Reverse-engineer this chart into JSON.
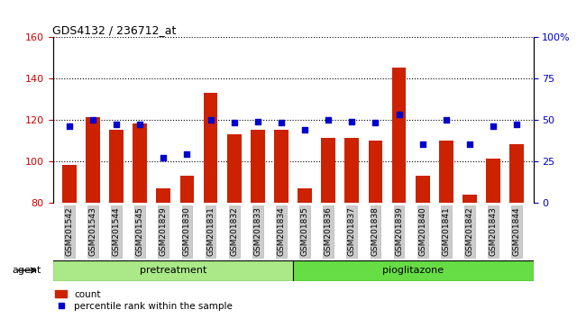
{
  "title": "GDS4132 / 236712_at",
  "samples": [
    "GSM201542",
    "GSM201543",
    "GSM201544",
    "GSM201545",
    "GSM201829",
    "GSM201830",
    "GSM201831",
    "GSM201832",
    "GSM201833",
    "GSM201834",
    "GSM201835",
    "GSM201836",
    "GSM201837",
    "GSM201838",
    "GSM201839",
    "GSM201840",
    "GSM201841",
    "GSM201842",
    "GSM201843",
    "GSM201844"
  ],
  "bar_values": [
    98,
    121,
    115,
    118,
    87,
    93,
    133,
    113,
    115,
    115,
    87,
    111,
    111,
    110,
    145,
    93,
    110,
    84,
    101,
    108
  ],
  "blue_values": [
    46,
    50,
    47,
    47,
    27,
    29,
    50,
    48,
    49,
    48,
    44,
    50,
    49,
    48,
    53,
    35,
    50,
    35,
    46,
    47
  ],
  "pretreatment_count": 10,
  "ylim_left": [
    80,
    160
  ],
  "ylim_right": [
    0,
    100
  ],
  "yticks_left": [
    80,
    100,
    120,
    140,
    160
  ],
  "yticks_right": [
    0,
    25,
    50,
    75,
    100
  ],
  "bar_color": "#cc2200",
  "dot_color": "#0000cc",
  "grid_color": "#000000",
  "pretreatment_color": "#aae888",
  "pioglitazone_color": "#66dd44",
  "agent_label": "agent",
  "pretreatment_label": "pretreatment",
  "pioglitazone_label": "pioglitazone",
  "legend_count": "count",
  "legend_pct": "percentile rank within the sample",
  "bg_color": "#ffffff",
  "tick_label_bg": "#cccccc",
  "left_tick_color": "#cc0000",
  "right_tick_color": "#0000cc"
}
